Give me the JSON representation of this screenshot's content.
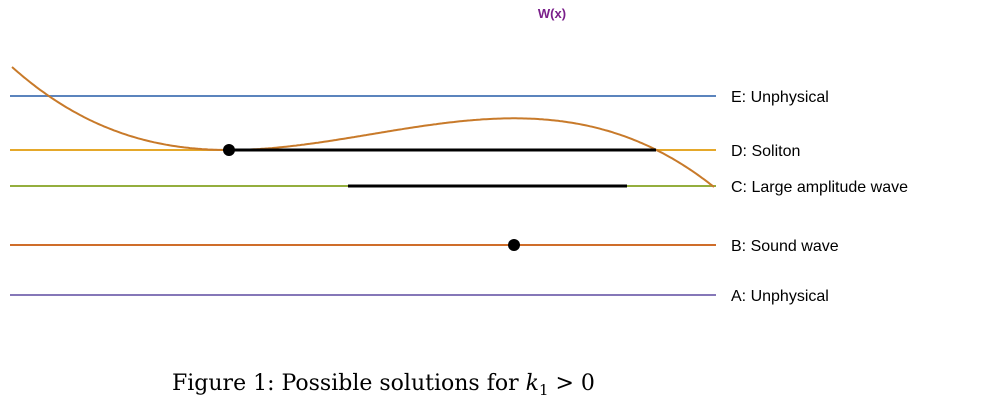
{
  "diagram": {
    "ylabel": "W(x)",
    "ylabel_color": "#7a1f8a",
    "curve_color": "#c87a2a",
    "chord_color": "#000000",
    "levels": [
      {
        "id": "E",
        "label": "E: Unphysical",
        "color": "#5b84bd"
      },
      {
        "id": "D",
        "label": "D: Soliton",
        "color": "#e5a82a"
      },
      {
        "id": "C",
        "label": "C: Large amplitude wave",
        "color": "#94ae3e"
      },
      {
        "id": "B",
        "label": "B: Sound wave",
        "color": "#cf6d2a"
      },
      {
        "id": "A",
        "label": "A: Unphysical",
        "color": "#8577b8"
      }
    ]
  },
  "caption": {
    "prefix": "Figure 1:  Possible solutions for ",
    "var": "k",
    "sub": "1",
    "rel": " > 0"
  }
}
